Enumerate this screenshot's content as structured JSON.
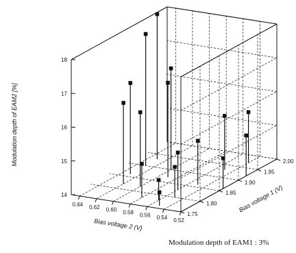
{
  "chart_data": {
    "type": "scatter",
    "subtype": "3d-stem",
    "xlabel": "Bias voltage 2 (V)",
    "ylabel": "Bias voltage 1 (V)",
    "zlabel": "Modulation depth of EAM2 [%]",
    "caption": "Modulation depth of EAM1 : 3%",
    "x_ticks": [
      "0.64",
      "0.62",
      "0.60",
      "0.58",
      "0.56",
      "0.54",
      "0.52"
    ],
    "y_ticks": [
      "1.75",
      "1.80",
      "1.85",
      "1.90",
      "1.95",
      "2.00"
    ],
    "z_ticks": [
      "14",
      "15",
      "16",
      "17",
      "18"
    ],
    "xlim": [
      0.52,
      0.65
    ],
    "ylim": [
      1.75,
      2.0
    ],
    "zlim": [
      14,
      18
    ],
    "grid": true,
    "points": [
      {
        "x": 0.63,
        "y": 1.93,
        "z": 18.3
      },
      {
        "x": 0.63,
        "y": 1.9,
        "z": 17.9
      },
      {
        "x": 0.63,
        "y": 1.86,
        "z": 16.7
      },
      {
        "x": 0.62,
        "y": 1.82,
        "z": 16.4
      },
      {
        "x": 0.6,
        "y": 1.9,
        "z": 17.0
      },
      {
        "x": 0.59,
        "y": 1.87,
        "z": 16.8
      },
      {
        "x": 0.6,
        "y": 1.82,
        "z": 16.2
      },
      {
        "x": 0.55,
        "y": 1.93,
        "z": 15.6
      },
      {
        "x": 0.54,
        "y": 1.97,
        "z": 15.5
      },
      {
        "x": 0.56,
        "y": 1.83,
        "z": 15.1
      },
      {
        "x": 0.55,
        "y": 1.86,
        "z": 15.3
      },
      {
        "x": 0.58,
        "y": 1.78,
        "z": 15.0
      },
      {
        "x": 0.55,
        "y": 1.8,
        "z": 14.9
      },
      {
        "x": 0.56,
        "y": 1.78,
        "z": 14.6
      },
      {
        "x": 0.55,
        "y": 1.76,
        "z": 14.4
      },
      {
        "x": 0.52,
        "y": 1.92,
        "z": 15.2
      },
      {
        "x": 0.52,
        "y": 1.86,
        "z": 14.9
      }
    ]
  }
}
